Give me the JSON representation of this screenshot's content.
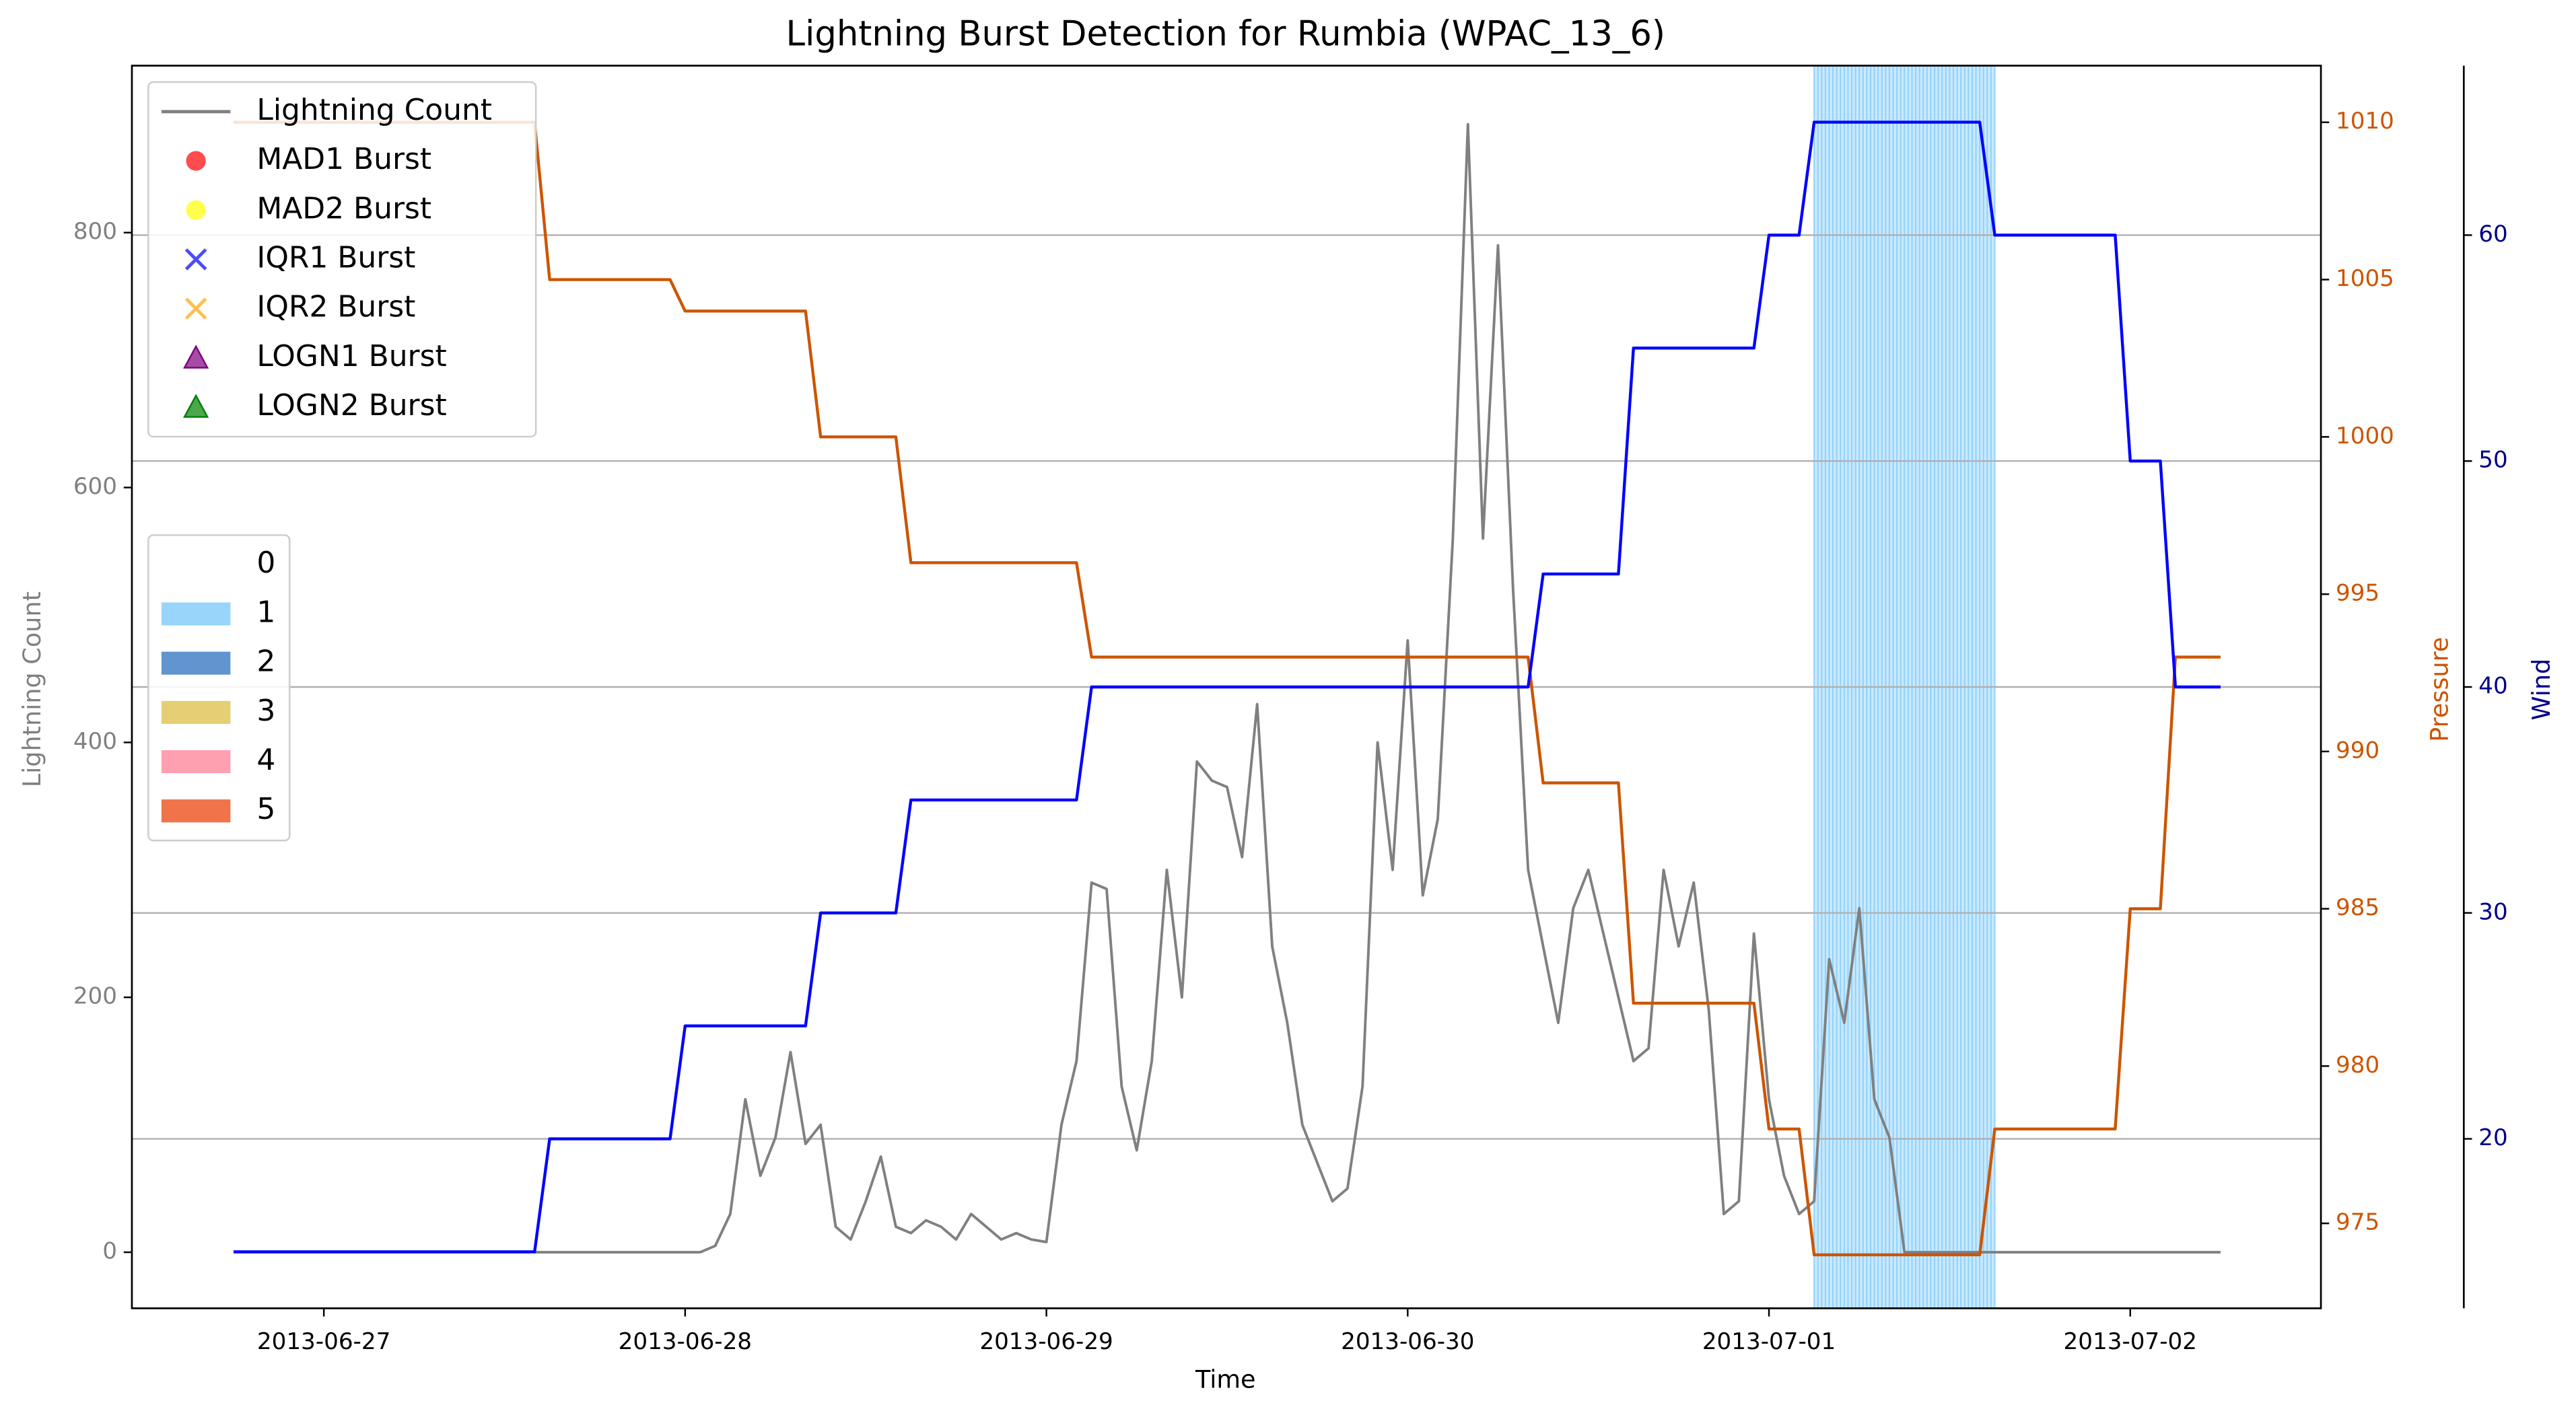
{
  "chart_data": {
    "type": "line",
    "title": "Lightning Burst Detection for Rumbia (WPAC_13_6)",
    "xlabel": "Time",
    "ylabel": "Lightning Count",
    "y2label": "Pressure",
    "y3label": "Wind",
    "y_color": "#808080",
    "y2_color": "#cc5500",
    "y3_color": "#00008b",
    "xlim": [
      "2013-06-26 11:15",
      "2013-07-02 12:40"
    ],
    "xticks": [
      "2013-06-27",
      "2013-06-28",
      "2013-06-29",
      "2013-06-30",
      "2013-07-01",
      "2013-07-02"
    ],
    "ylim": [
      -44,
      931
    ],
    "yticks": [
      0,
      200,
      400,
      600,
      800
    ],
    "y2lim": [
      972.3,
      1011.8
    ],
    "y2ticks": [
      975,
      980,
      985,
      990,
      995,
      1000,
      1005,
      1010
    ],
    "y3lim": [
      12.5,
      67.5
    ],
    "y3ticks": [
      20,
      30,
      40,
      50,
      60
    ],
    "grid": "y3",
    "legend": "upper left",
    "series": [
      {
        "name": "Lightning Count",
        "color": "#808080",
        "axis": "y",
        "x": [
          "2013-06-26 18:00",
          "2013-06-28 00:00",
          "2013-06-28 01:00",
          "2013-06-28 02:00",
          "2013-06-28 03:00",
          "2013-06-28 04:00",
          "2013-06-28 05:00",
          "2013-06-28 06:00",
          "2013-06-28 07:00",
          "2013-06-28 08:00",
          "2013-06-28 09:00",
          "2013-06-28 10:00",
          "2013-06-28 11:00",
          "2013-06-28 12:00",
          "2013-06-28 13:00",
          "2013-06-28 14:00",
          "2013-06-28 15:00",
          "2013-06-28 16:00",
          "2013-06-28 17:00",
          "2013-06-28 18:00",
          "2013-06-28 19:00",
          "2013-06-28 20:00",
          "2013-06-28 21:00",
          "2013-06-28 22:00",
          "2013-06-28 23:00",
          "2013-06-29 00:00",
          "2013-06-29 01:00",
          "2013-06-29 02:00",
          "2013-06-29 03:00",
          "2013-06-29 04:00",
          "2013-06-29 05:00",
          "2013-06-29 06:00",
          "2013-06-29 07:00",
          "2013-06-29 08:00",
          "2013-06-29 09:00",
          "2013-06-29 10:00",
          "2013-06-29 11:00",
          "2013-06-29 12:00",
          "2013-06-29 13:00",
          "2013-06-29 14:00",
          "2013-06-29 15:00",
          "2013-06-29 16:00",
          "2013-06-29 17:00",
          "2013-06-29 18:00",
          "2013-06-29 19:00",
          "2013-06-29 20:00",
          "2013-06-29 21:00",
          "2013-06-29 22:00",
          "2013-06-29 23:00",
          "2013-06-30 00:00",
          "2013-06-30 01:00",
          "2013-06-30 02:00",
          "2013-06-30 03:00",
          "2013-06-30 04:00",
          "2013-06-30 05:00",
          "2013-06-30 06:00",
          "2013-06-30 07:00",
          "2013-06-30 08:00",
          "2013-06-30 09:00",
          "2013-06-30 10:00",
          "2013-06-30 11:00",
          "2013-06-30 12:00",
          "2013-06-30 13:00",
          "2013-06-30 14:00",
          "2013-06-30 15:00",
          "2013-06-30 16:00",
          "2013-06-30 17:00",
          "2013-06-30 18:00",
          "2013-06-30 19:00",
          "2013-06-30 20:00",
          "2013-06-30 21:00",
          "2013-06-30 22:00",
          "2013-06-30 23:00",
          "2013-07-01 00:00",
          "2013-07-01 01:00",
          "2013-07-01 02:00",
          "2013-07-01 03:00",
          "2013-07-01 04:00",
          "2013-07-01 05:00",
          "2013-07-01 06:00",
          "2013-07-01 07:00",
          "2013-07-01 08:00",
          "2013-07-01 09:00",
          "2013-07-01 10:00",
          "2013-07-02 06:00"
        ],
        "values": [
          0,
          0,
          0,
          5,
          30,
          120,
          60,
          90,
          157,
          85,
          100,
          20,
          10,
          40,
          75,
          20,
          15,
          25,
          20,
          10,
          30,
          20,
          10,
          15,
          10,
          8,
          100,
          150,
          290,
          285,
          130,
          80,
          150,
          300,
          200,
          385,
          370,
          365,
          310,
          430,
          240,
          180,
          100,
          70,
          40,
          50,
          130,
          400,
          300,
          480,
          280,
          340,
          560,
          885,
          560,
          790,
          520,
          300,
          240,
          180,
          270,
          300,
          250,
          200,
          150,
          160,
          300,
          240,
          290,
          190,
          30,
          40,
          250,
          120,
          60,
          30,
          40,
          230,
          180,
          270,
          120,
          90,
          0,
          0,
          0
        ]
      },
      {
        "color": "#cc5500",
        "axis": "y2",
        "x": [
          "2013-06-26 18:00",
          "2013-06-27 14:00",
          "2013-06-27 15:00",
          "2013-06-27 23:00",
          "2013-06-28 00:00",
          "2013-06-28 08:00",
          "2013-06-28 09:00",
          "2013-06-28 14:00",
          "2013-06-28 15:00",
          "2013-06-29 02:00",
          "2013-06-29 03:00",
          "2013-06-30 08:00",
          "2013-06-30 09:00",
          "2013-06-30 14:00",
          "2013-06-30 15:00",
          "2013-06-30 23:00",
          "2013-07-01 00:00",
          "2013-07-01 02:00",
          "2013-07-01 03:00",
          "2013-07-01 14:00",
          "2013-07-01 15:00",
          "2013-07-01 23:00",
          "2013-07-02 00:00",
          "2013-07-02 02:00",
          "2013-07-02 03:00",
          "2013-07-02 06:00"
        ],
        "values": [
          1010,
          1010,
          1005,
          1005,
          1004,
          1004,
          1000,
          1000,
          996,
          996,
          993,
          993,
          989,
          989,
          982,
          982,
          978,
          978,
          974,
          974,
          978,
          978,
          985,
          985,
          993,
          993
        ]
      },
      {
        "color": "#0000ff",
        "axis": "y3",
        "x": [
          "2013-06-26 18:00",
          "2013-06-27 14:00",
          "2013-06-27 15:00",
          "2013-06-27 23:00",
          "2013-06-28 00:00",
          "2013-06-28 08:00",
          "2013-06-28 09:00",
          "2013-06-28 14:00",
          "2013-06-28 15:00",
          "2013-06-29 02:00",
          "2013-06-29 03:00",
          "2013-06-30 08:00",
          "2013-06-30 09:00",
          "2013-06-30 14:00",
          "2013-06-30 15:00",
          "2013-06-30 23:00",
          "2013-07-01 00:00",
          "2013-07-01 02:00",
          "2013-07-01 03:00",
          "2013-07-01 14:00",
          "2013-07-01 15:00",
          "2013-07-01 23:00",
          "2013-07-02 00:00",
          "2013-07-02 02:00",
          "2013-07-02 03:00",
          "2013-07-02 06:00"
        ],
        "values": [
          15,
          15,
          20,
          20,
          25,
          25,
          30,
          30,
          35,
          35,
          40,
          40,
          45,
          45,
          55,
          55,
          60,
          60,
          65,
          65,
          60,
          60,
          50,
          50,
          40,
          40
        ]
      }
    ],
    "burst_markers": [
      {
        "name": "MAD1 Burst",
        "color": "#ff0000",
        "marker": "o"
      },
      {
        "name": "MAD2 Burst",
        "color": "#ffff00",
        "marker": "o"
      },
      {
        "name": "IQR1 Burst",
        "color": "#0000ff",
        "marker": "x"
      },
      {
        "name": "IQR2 Burst",
        "color": "#ffa500",
        "marker": "x"
      },
      {
        "name": "LOGN1 Burst",
        "color": "#800080",
        "marker": "^"
      },
      {
        "name": "LOGN2 Burst",
        "color": "#008000",
        "marker": "^"
      }
    ],
    "shaded_spans": [
      {
        "start": "2013-07-01 03:00",
        "end": "2013-07-01 15:00",
        "level": 1
      }
    ],
    "levels": [
      {
        "label": "0",
        "color": "#ffffff"
      },
      {
        "label": "1",
        "color": "#87cefa"
      },
      {
        "label": "2",
        "color": "#4682c8"
      },
      {
        "label": "3",
        "color": "#e1c55a"
      },
      {
        "label": "4",
        "color": "#ff8fa3"
      },
      {
        "label": "5",
        "color": "#ee5a2a"
      }
    ]
  }
}
